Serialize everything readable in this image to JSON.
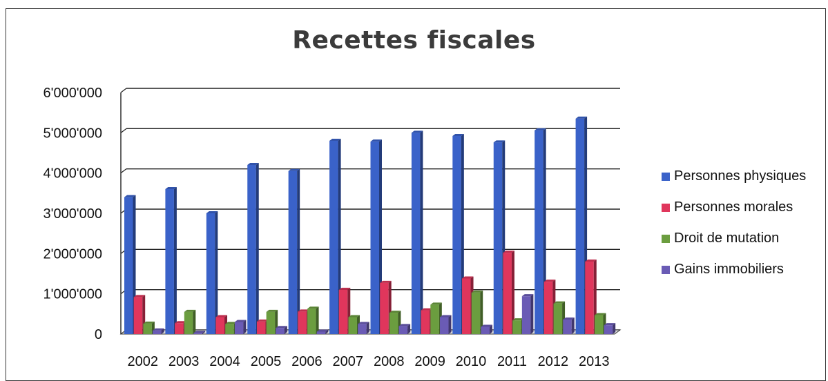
{
  "chart_data": {
    "type": "bar",
    "title": "Recettes fiscales",
    "categories": [
      "2002",
      "2003",
      "2004",
      "2005",
      "2006",
      "2007",
      "2008",
      "2009",
      "2010",
      "2011",
      "2012",
      "2013"
    ],
    "ylim": [
      0,
      6000000
    ],
    "y_ticks": [
      0,
      1000000,
      2000000,
      3000000,
      4000000,
      5000000,
      6000000
    ],
    "y_tick_labels": [
      "0",
      "1'000'000",
      "2'000'000",
      "3'000'000",
      "4'000'000",
      "5'000'000",
      "6'000'000"
    ],
    "grid": true,
    "legend_position": "right",
    "series": [
      {
        "name": "Personnes physiques",
        "color": "#3a62c9",
        "values": [
          3400000,
          3600000,
          3000000,
          4200000,
          4050000,
          4800000,
          4780000,
          5000000,
          4920000,
          4760000,
          5060000,
          5350000
        ]
      },
      {
        "name": "Personnes morales",
        "color": "#e0365c",
        "values": [
          920000,
          270000,
          420000,
          310000,
          560000,
          1100000,
          1270000,
          590000,
          1380000,
          2020000,
          1300000,
          1800000
        ]
      },
      {
        "name": "Droit de mutation",
        "color": "#6b9d3f",
        "values": [
          260000,
          550000,
          250000,
          550000,
          630000,
          420000,
          530000,
          730000,
          1030000,
          340000,
          760000,
          470000
        ]
      },
      {
        "name": "Gains immobiliers",
        "color": "#6a5bb5",
        "values": [
          90000,
          30000,
          300000,
          150000,
          60000,
          250000,
          200000,
          420000,
          180000,
          940000,
          360000,
          220000
        ]
      }
    ]
  }
}
